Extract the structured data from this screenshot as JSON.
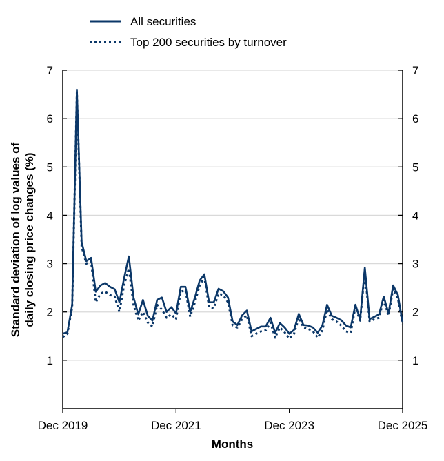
{
  "chart_data": {
    "type": "line",
    "title": "",
    "xlabel": "Months",
    "ylabel": "Standard deviation of log values of daily closing price changes (%)",
    "ylabel_lines": [
      "Standard deviation of log values of",
      "daily closing price changes (%)"
    ],
    "ylim": [
      0,
      7
    ],
    "yticks": [
      1,
      2,
      3,
      4,
      5,
      6,
      7
    ],
    "xticks": [
      "Dec 2019",
      "Dec 2021",
      "Dec 2023",
      "Dec 2025"
    ],
    "grid": true,
    "legend_position": "top",
    "color": "#0b3768",
    "x": [
      "2019-12",
      "2020-01",
      "2020-02",
      "2020-03",
      "2020-04",
      "2020-05",
      "2020-06",
      "2020-07",
      "2020-08",
      "2020-09",
      "2020-10",
      "2020-11",
      "2020-12",
      "2021-01",
      "2021-02",
      "2021-03",
      "2021-04",
      "2021-05",
      "2021-06",
      "2021-07",
      "2021-08",
      "2021-09",
      "2021-10",
      "2021-11",
      "2021-12",
      "2022-01",
      "2022-02",
      "2022-03",
      "2022-04",
      "2022-05",
      "2022-06",
      "2022-07",
      "2022-08",
      "2022-09",
      "2022-10",
      "2022-11",
      "2022-12",
      "2023-01",
      "2023-02",
      "2023-03",
      "2023-04",
      "2023-05",
      "2023-06",
      "2023-07",
      "2023-08",
      "2023-09",
      "2023-10",
      "2023-11",
      "2023-12",
      "2024-01",
      "2024-02",
      "2024-03",
      "2024-04",
      "2024-05",
      "2024-06",
      "2024-07",
      "2024-08",
      "2024-09",
      "2024-10",
      "2024-11",
      "2024-12",
      "2025-01",
      "2025-02",
      "2025-03",
      "2025-04",
      "2025-05",
      "2025-06",
      "2025-07",
      "2025-08",
      "2025-09",
      "2025-10",
      "2025-11",
      "2025-12"
    ],
    "series": [
      {
        "name": "All securities",
        "style": "solid",
        "values": [
          1.55,
          1.58,
          2.15,
          6.6,
          3.45,
          3.05,
          3.12,
          2.42,
          2.55,
          2.6,
          2.52,
          2.47,
          2.2,
          2.7,
          3.15,
          2.3,
          1.95,
          2.25,
          1.92,
          1.82,
          2.25,
          2.3,
          2.0,
          2.1,
          1.97,
          2.52,
          2.52,
          2.0,
          2.3,
          2.65,
          2.78,
          2.2,
          2.2,
          2.48,
          2.43,
          2.3,
          1.8,
          1.73,
          1.93,
          2.03,
          1.6,
          1.65,
          1.7,
          1.7,
          1.88,
          1.57,
          1.77,
          1.68,
          1.55,
          1.63,
          1.96,
          1.73,
          1.72,
          1.68,
          1.57,
          1.72,
          2.15,
          1.92,
          1.88,
          1.83,
          1.72,
          1.68,
          2.15,
          1.85,
          2.92,
          1.85,
          1.9,
          1.95,
          2.32,
          1.97,
          2.55,
          2.35,
          1.78
        ]
      },
      {
        "name": "Top 200 securities by turnover",
        "style": "dotted",
        "values": [
          1.48,
          1.55,
          2.1,
          6.55,
          3.35,
          3.0,
          3.05,
          2.2,
          2.38,
          2.42,
          2.35,
          2.32,
          2.0,
          2.55,
          2.9,
          2.15,
          1.82,
          2.0,
          1.78,
          1.7,
          2.15,
          2.05,
          1.88,
          1.95,
          1.85,
          2.42,
          2.45,
          1.9,
          2.2,
          2.55,
          2.72,
          2.1,
          2.08,
          2.38,
          2.35,
          2.2,
          1.72,
          1.68,
          1.85,
          1.93,
          1.5,
          1.55,
          1.6,
          1.62,
          1.78,
          1.47,
          1.68,
          1.58,
          1.45,
          1.55,
          1.88,
          1.68,
          1.65,
          1.6,
          1.47,
          1.62,
          2.05,
          1.85,
          1.8,
          1.72,
          1.6,
          1.57,
          2.1,
          1.82,
          2.85,
          1.8,
          1.85,
          1.88,
          2.25,
          1.92,
          2.48,
          2.28,
          1.75
        ]
      }
    ]
  }
}
